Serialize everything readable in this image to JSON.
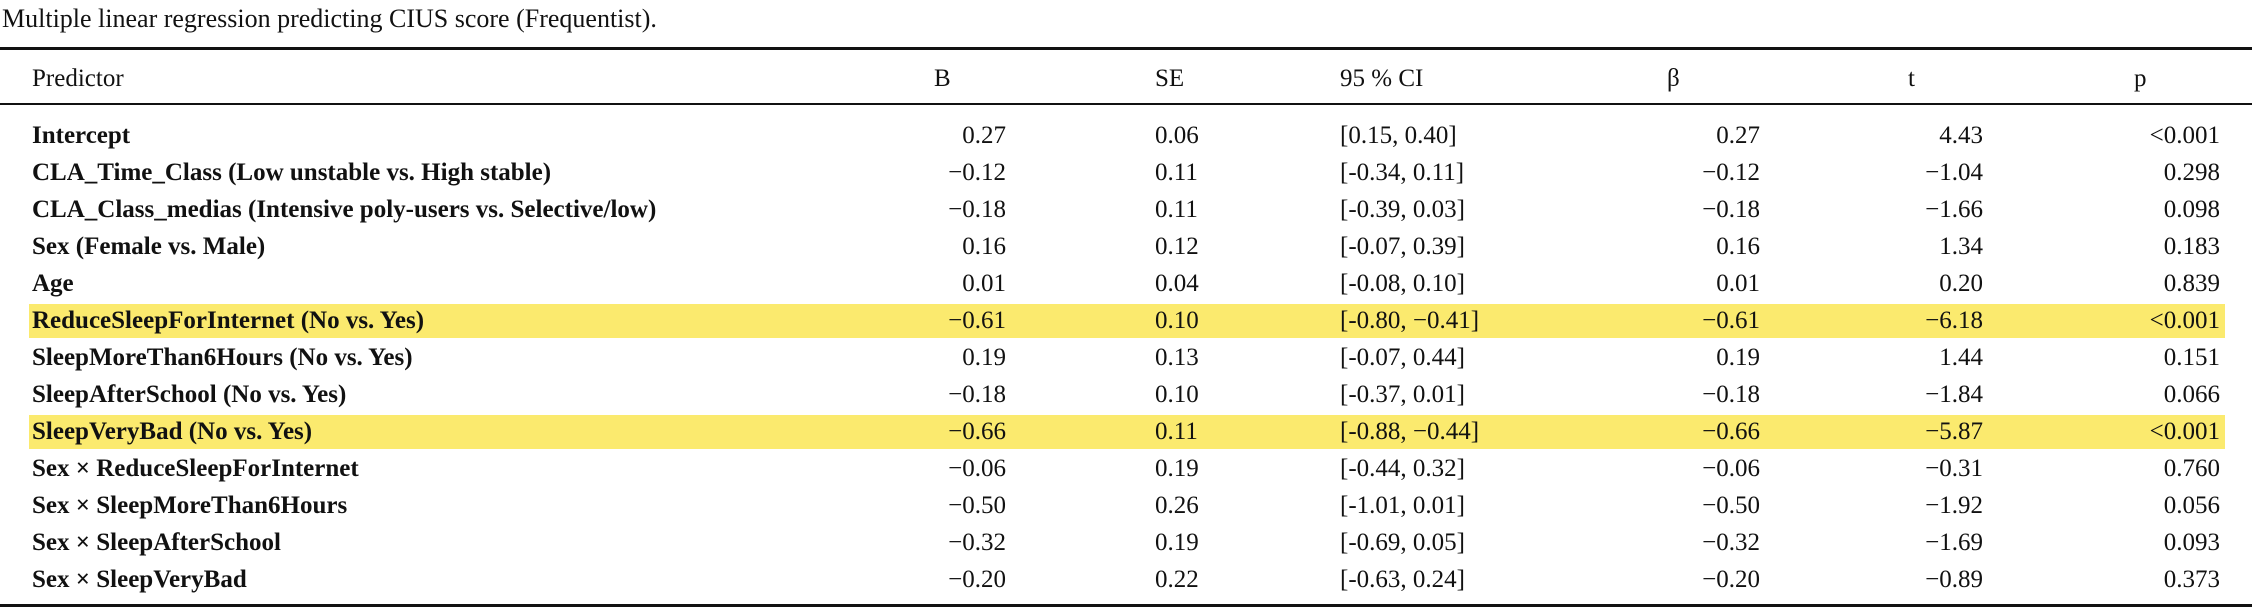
{
  "caption": "Multiple linear regression predicting CIUS score (Frequentist).",
  "table": {
    "columns": [
      "Predictor",
      "B",
      "SE",
      "95 % CI",
      "β",
      "t",
      "p"
    ],
    "rows": [
      [
        "Intercept",
        "0.27",
        "0.06",
        "[0.15, 0.40]",
        "0.27",
        "4.43",
        "<0.001"
      ],
      [
        "CLA_Time_Class (Low unstable vs. High stable)",
        "−0.12",
        "0.11",
        "[-0.34, 0.11]",
        "−0.12",
        "−1.04",
        "0.298"
      ],
      [
        "CLA_Class_medias (Intensive poly-users vs. Selective/low)",
        "−0.18",
        "0.11",
        "[-0.39, 0.03]",
        "−0.18",
        "−1.66",
        "0.098"
      ],
      [
        "Sex (Female vs. Male)",
        "0.16",
        "0.12",
        "[-0.07, 0.39]",
        "0.16",
        "1.34",
        "0.183"
      ],
      [
        "Age",
        "0.01",
        "0.04",
        "[-0.08, 0.10]",
        "0.01",
        "0.20",
        "0.839"
      ],
      [
        "ReduceSleepForInternet (No vs. Yes)",
        "−0.61",
        "0.10",
        "[-0.80, −0.41]",
        "−0.61",
        "−6.18",
        "<0.001"
      ],
      [
        "SleepMoreThan6Hours (No vs. Yes)",
        "0.19",
        "0.13",
        "[-0.07, 0.44]",
        "0.19",
        "1.44",
        "0.151"
      ],
      [
        "SleepAfterSchool (No vs. Yes)",
        "−0.18",
        "0.10",
        "[-0.37, 0.01]",
        "−0.18",
        "−1.84",
        "0.066"
      ],
      [
        "SleepVeryBad (No vs. Yes)",
        "−0.66",
        "0.11",
        "[-0.88, −0.44]",
        "−0.66",
        "−5.87",
        "<0.001"
      ],
      [
        "Sex × ReduceSleepForInternet",
        "−0.06",
        "0.19",
        "[-0.44, 0.32]",
        "−0.06",
        "−0.31",
        "0.760"
      ],
      [
        "Sex × SleepMoreThan6Hours",
        "−0.50",
        "0.26",
        "[-1.01, 0.01]",
        "−0.50",
        "−1.92",
        "0.056"
      ],
      [
        "Sex × SleepAfterSchool",
        "−0.32",
        "0.19",
        "[-0.69, 0.05]",
        "−0.32",
        "−1.69",
        "0.093"
      ],
      [
        "Sex × SleepVeryBad",
        "−0.20",
        "0.22",
        "[-0.63, 0.24]",
        "−0.20",
        "−0.89",
        "0.373"
      ]
    ]
  }
}
